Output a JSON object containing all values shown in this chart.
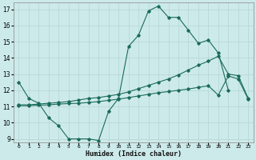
{
  "xlabel": "Humidex (Indice chaleur)",
  "bg_color": "#cdeaea",
  "grid_color": "#b8d8d8",
  "line_color": "#1a6b5a",
  "xlim": [
    -0.5,
    23.5
  ],
  "ylim": [
    8.8,
    17.4
  ],
  "yticks": [
    9,
    10,
    11,
    12,
    13,
    14,
    15,
    16,
    17
  ],
  "xticks": [
    0,
    1,
    2,
    3,
    4,
    5,
    6,
    7,
    8,
    9,
    10,
    11,
    12,
    13,
    14,
    15,
    16,
    17,
    18,
    19,
    20,
    21,
    22,
    23
  ],
  "series": [
    {
      "x": [
        0,
        1,
        2,
        3,
        4,
        5,
        6,
        7,
        8,
        9,
        10,
        11,
        12,
        13,
        14,
        15,
        16,
        17,
        18,
        19,
        20,
        21
      ],
      "y": [
        12.5,
        11.5,
        11.2,
        10.3,
        9.8,
        9.0,
        9.0,
        9.0,
        8.9,
        10.7,
        11.5,
        14.7,
        15.4,
        16.9,
        17.2,
        16.5,
        16.5,
        15.7,
        14.9,
        15.1,
        14.3,
        12.0
      ]
    },
    {
      "x": [
        0,
        1,
        2,
        3,
        4,
        5,
        6,
        7,
        8,
        9,
        10,
        11,
        12,
        13,
        14,
        15,
        16,
        17,
        18,
        19,
        20,
        21,
        22,
        23
      ],
      "y": [
        11.1,
        11.1,
        11.15,
        11.2,
        11.25,
        11.3,
        11.4,
        11.5,
        11.55,
        11.65,
        11.75,
        11.9,
        12.1,
        12.3,
        12.5,
        12.7,
        12.95,
        13.25,
        13.55,
        13.8,
        14.1,
        13.0,
        12.9,
        11.5
      ]
    },
    {
      "x": [
        0,
        1,
        2,
        3,
        4,
        5,
        6,
        7,
        8,
        9,
        10,
        11,
        12,
        13,
        14,
        15,
        16,
        17,
        18,
        19,
        20,
        21,
        22,
        23
      ],
      "y": [
        11.05,
        11.05,
        11.08,
        11.1,
        11.15,
        11.18,
        11.2,
        11.25,
        11.3,
        11.38,
        11.45,
        11.55,
        11.65,
        11.75,
        11.85,
        11.92,
        12.0,
        12.08,
        12.18,
        12.28,
        11.7,
        12.88,
        12.7,
        11.45
      ]
    }
  ]
}
